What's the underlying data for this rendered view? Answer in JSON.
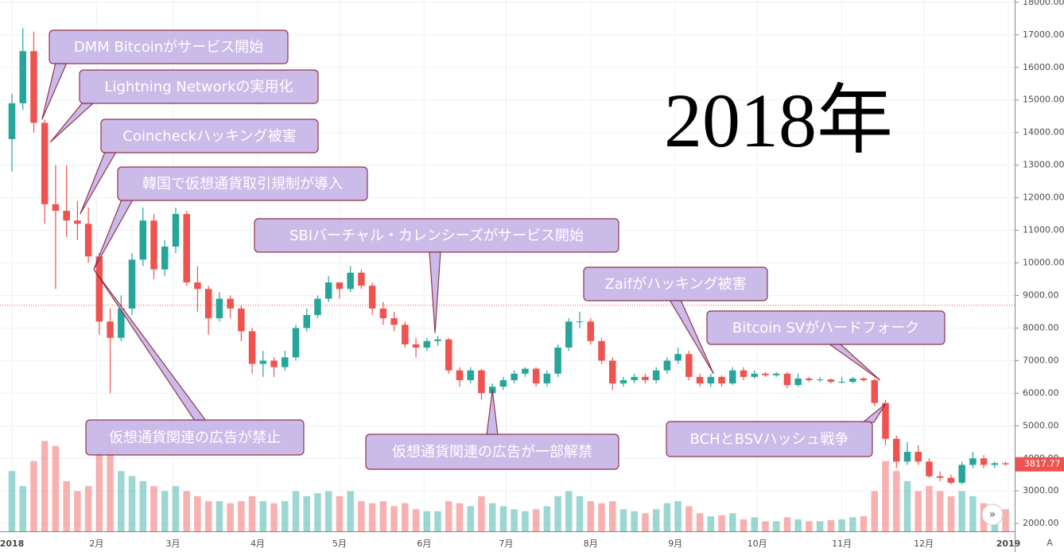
{
  "chart_data": {
    "type": "candlestick",
    "title": "2018年",
    "x": [
      0,
      4,
      8,
      12,
      16,
      20,
      24,
      28,
      32,
      36,
      40,
      44,
      48,
      52,
      56,
      60,
      64,
      68,
      72,
      76,
      80,
      84,
      88,
      92,
      96,
      100,
      104,
      108,
      112,
      116,
      120,
      124,
      128,
      132,
      136,
      140,
      144,
      148,
      152,
      156,
      160,
      164,
      168,
      172,
      176,
      180,
      184,
      188,
      192,
      196,
      200,
      204,
      208,
      212,
      216,
      220,
      224,
      228,
      232,
      236,
      240,
      244,
      248,
      252,
      256,
      260,
      264,
      268,
      272,
      276,
      280,
      284,
      288,
      292,
      296,
      300,
      304,
      308,
      312,
      316,
      320,
      324,
      328,
      332,
      336,
      340,
      344,
      348,
      352,
      356,
      360,
      364
    ],
    "open": [
      13800,
      14900,
      16500,
      14300,
      11800,
      11600,
      11300,
      11200,
      10200,
      8200,
      7700,
      8600,
      10100,
      11300,
      9800,
      10500,
      11500,
      9400,
      9200,
      8300,
      8900,
      8600,
      7900,
      6900,
      7000,
      6800,
      7100,
      8000,
      8400,
      8900,
      9400,
      9200,
      9700,
      9300,
      8600,
      8300,
      8100,
      7500,
      7400,
      7600,
      7650,
      6700,
      6400,
      6700,
      6000,
      6200,
      6400,
      6600,
      6750,
      6300,
      6600,
      7400,
      8200,
      8200,
      7600,
      7000,
      6300,
      6400,
      6500,
      6400,
      6700,
      7000,
      7200,
      6500,
      6300,
      6500,
      6300,
      6700,
      6500,
      6600,
      6550,
      6600,
      6250,
      6450,
      6400,
      6420,
      6350,
      6350,
      6450,
      6400,
      5700,
      4600,
      3900,
      4200,
      3900,
      3450,
      3400,
      3250,
      3800,
      4000,
      3800,
      3850
    ],
    "high": [
      15200,
      17200,
      17100,
      14400,
      13000,
      13000,
      11900,
      11700,
      10300,
      8600,
      9000,
      10300,
      11700,
      11500,
      10700,
      11700,
      11600,
      9900,
      9300,
      9100,
      9000,
      8700,
      8000,
      7300,
      7100,
      7300,
      8100,
      8600,
      9000,
      9600,
      9400,
      9900,
      9800,
      9400,
      8800,
      8500,
      8200,
      7700,
      7700,
      7750,
      7700,
      6800,
      6800,
      6750,
      6300,
      6500,
      6700,
      6800,
      6800,
      6700,
      7500,
      8300,
      8500,
      8300,
      7700,
      7100,
      6500,
      6600,
      6600,
      6800,
      7100,
      7400,
      7300,
      6600,
      6600,
      6550,
      6800,
      6800,
      6700,
      6650,
      6650,
      6650,
      6600,
      6500,
      6500,
      6450,
      6500,
      6500,
      6500,
      6450,
      5800,
      4700,
      4500,
      4400,
      4000,
      3600,
      3500,
      3900,
      4200,
      4100,
      3900,
      3900
    ],
    "low": [
      12800,
      14700,
      14000,
      11200,
      9200,
      10800,
      10700,
      10000,
      7800,
      6000,
      7600,
      8400,
      9900,
      9500,
      9600,
      10300,
      9300,
      8500,
      7800,
      8200,
      8300,
      7600,
      6600,
      6500,
      6500,
      6700,
      7000,
      7900,
      8300,
      8800,
      8900,
      9100,
      9200,
      8400,
      8100,
      7900,
      7400,
      7100,
      7300,
      7450,
      6600,
      6200,
      6300,
      5800,
      5800,
      6100,
      6300,
      6500,
      6200,
      6200,
      6500,
      7300,
      8000,
      7500,
      6900,
      6100,
      6200,
      6300,
      6300,
      6300,
      6600,
      6900,
      6400,
      6200,
      6200,
      6200,
      6250,
      6400,
      6450,
      6500,
      6500,
      6150,
      6200,
      6350,
      6350,
      6300,
      6300,
      6300,
      6350,
      5600,
      4400,
      3700,
      3800,
      3800,
      3400,
      3300,
      3200,
      3200,
      3700,
      3700,
      3700,
      3780
    ],
    "close": [
      14900,
      16500,
      14300,
      11800,
      11600,
      11300,
      11200,
      10200,
      8200,
      7700,
      8600,
      10100,
      11300,
      9800,
      10500,
      11500,
      9400,
      9200,
      8300,
      8900,
      8600,
      7900,
      6900,
      7000,
      6800,
      7100,
      8000,
      8400,
      8900,
      9400,
      9200,
      9700,
      9300,
      8600,
      8300,
      8100,
      7500,
      7400,
      7600,
      7650,
      6700,
      6400,
      6700,
      6000,
      6200,
      6400,
      6600,
      6750,
      6300,
      6600,
      7400,
      8200,
      8200,
      7600,
      7000,
      6300,
      6400,
      6500,
      6400,
      6700,
      7000,
      7200,
      6500,
      6300,
      6500,
      6300,
      6700,
      6500,
      6600,
      6550,
      6600,
      6250,
      6450,
      6400,
      6420,
      6350,
      6350,
      6450,
      6400,
      5700,
      4600,
      3900,
      4200,
      3900,
      3450,
      3400,
      3250,
      3800,
      4000,
      3800,
      3850,
      3818
    ],
    "volume": [
      60,
      45,
      70,
      90,
      85,
      50,
      40,
      45,
      80,
      95,
      60,
      55,
      50,
      45,
      40,
      45,
      40,
      35,
      30,
      30,
      28,
      30,
      35,
      30,
      28,
      30,
      40,
      35,
      38,
      40,
      35,
      40,
      30,
      28,
      30,
      25,
      28,
      22,
      20,
      20,
      30,
      28,
      25,
      35,
      28,
      25,
      22,
      20,
      22,
      25,
      35,
      40,
      35,
      30,
      28,
      30,
      22,
      20,
      18,
      22,
      28,
      30,
      25,
      18,
      15,
      16,
      18,
      12,
      14,
      10,
      10,
      14,
      12,
      10,
      10,
      11,
      12,
      14,
      15,
      40,
      70,
      60,
      50,
      40,
      45,
      40,
      35,
      40,
      35,
      28,
      25,
      22
    ],
    "up_color": "#26a69a",
    "down_color": "#ef5350",
    "xlim": [
      0,
      365
    ],
    "xticks": [
      {
        "value": 0,
        "label": "2018"
      },
      {
        "value": 31,
        "label": "2月"
      },
      {
        "value": 59,
        "label": "3月"
      },
      {
        "value": 90,
        "label": "4月"
      },
      {
        "value": 120,
        "label": "5月"
      },
      {
        "value": 151,
        "label": "6月"
      },
      {
        "value": 181,
        "label": "7月"
      },
      {
        "value": 212,
        "label": "8月"
      },
      {
        "value": 243,
        "label": "9月"
      },
      {
        "value": 273,
        "label": "10月"
      },
      {
        "value": 304,
        "label": "11月"
      },
      {
        "value": 334,
        "label": "12月"
      },
      {
        "value": 365,
        "label": "2019"
      }
    ],
    "ylim": [
      1760,
      18070
    ],
    "yticks": [
      {
        "value": 2000,
        "label": "2000.00"
      },
      {
        "value": 3000,
        "label": "3000.00"
      },
      {
        "value": 4000,
        "label": "4000.00"
      },
      {
        "value": 5000,
        "label": "5000.00"
      },
      {
        "value": 6000,
        "label": "6000.00"
      },
      {
        "value": 7000,
        "label": "7000.00"
      },
      {
        "value": 8000,
        "label": "8000.00"
      },
      {
        "value": 9000,
        "label": "9000.00"
      },
      {
        "value": 10000,
        "label": "10000.00"
      },
      {
        "value": 11000,
        "label": "11000.00"
      },
      {
        "value": 12000,
        "label": "12000.00"
      },
      {
        "value": 13000,
        "label": "13000.00"
      },
      {
        "value": 14000,
        "label": "14000.00"
      },
      {
        "value": 15000,
        "label": "15000.00"
      },
      {
        "value": 16000,
        "label": "16000.00"
      },
      {
        "value": 17000,
        "label": "17000.00"
      },
      {
        "value": 18000,
        "label": "18000.00"
      }
    ],
    "grid": true,
    "price_line": 8700,
    "last_price": {
      "value": 3817.77,
      "label": "3817.77"
    },
    "annotations": [
      {
        "text": "DMM Bitcoinがサービス開始",
        "x": 11,
        "y": 14400
      },
      {
        "text": "Lightning Networkの実用化",
        "x": 14,
        "y": 13700
      },
      {
        "text": "Coincheckハッキング被害",
        "x": 25,
        "y": 11500
      },
      {
        "text": "韓国で仮想通貨取引規制が導入",
        "x": 30,
        "y": 9800
      },
      {
        "text": "仮想通貨関連の広告が禁止",
        "x": 30,
        "y": 9800
      },
      {
        "text": "SBIバーチャル・カレンシーズがサービス開始",
        "x": 155,
        "y": 7850
      },
      {
        "text": "仮想通貨関連の広告が一部解禁",
        "x": 176,
        "y": 6100
      },
      {
        "text": "Zaifがハッキング被害",
        "x": 257,
        "y": 6600
      },
      {
        "text": "Bitcoin SVがハードフォーク",
        "x": 318,
        "y": 6400
      },
      {
        "text": "BCHとBSVハッシュ戦争",
        "x": 320,
        "y": 5670
      }
    ]
  }
}
